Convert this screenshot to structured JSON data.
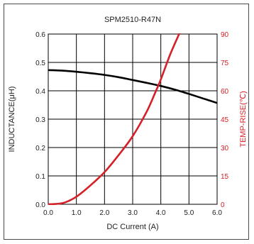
{
  "chart_data": {
    "type": "line",
    "title": "SPM2510-R47N",
    "xlabel": "DC Current (A)",
    "ylabel_left": "INDUCTANCE(μH)",
    "ylabel_right": "TEMP-RISE(℃)",
    "xlim": [
      0,
      6
    ],
    "ylim_left": [
      0,
      0.6
    ],
    "ylim_right": [
      0,
      90
    ],
    "x_ticks": [
      "0.0",
      "1.0",
      "2.0",
      "3.0",
      "4.0",
      "5.0",
      "6.0"
    ],
    "y_left_ticks": [
      "0.0",
      "0.1",
      "0.2",
      "0.3",
      "0.4",
      "0.5",
      "0.6"
    ],
    "y_right_ticks": [
      "0",
      "15",
      "30",
      "45",
      "60",
      "75",
      "90"
    ],
    "grid": true,
    "colors": {
      "inductance": "#000000",
      "temp_rise": "#d42027",
      "right_axis_text": "#d42027"
    },
    "series": [
      {
        "axis": "left",
        "x": [
          0,
          0.5,
          1.0,
          1.5,
          2.0,
          2.5,
          3.0,
          3.5,
          4.0,
          4.5,
          5.0,
          5.5,
          6.0
        ],
        "values": [
          0.473,
          0.471,
          0.467,
          0.462,
          0.456,
          0.448,
          0.438,
          0.428,
          0.417,
          0.404,
          0.389,
          0.373,
          0.357
        ]
      },
      {
        "axis": "right",
        "x": [
          0,
          0.3,
          0.6,
          1.0,
          1.5,
          2.0,
          2.5,
          3.0,
          3.5,
          3.8,
          4.0,
          4.3,
          4.5,
          4.8
        ],
        "values": [
          0,
          0.2,
          1,
          4,
          10,
          17,
          26,
          36,
          49,
          59,
          66,
          78,
          85,
          95
        ]
      }
    ]
  }
}
